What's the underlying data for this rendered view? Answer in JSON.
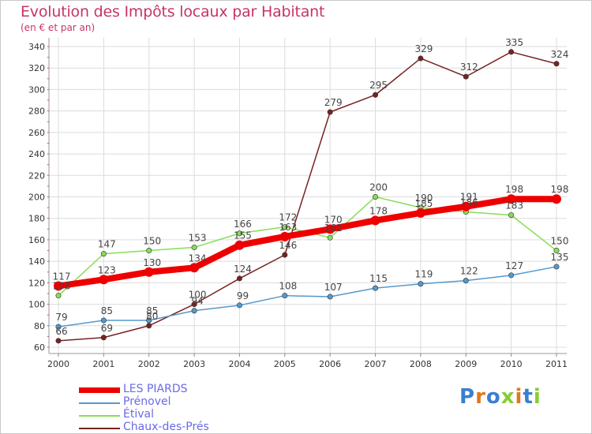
{
  "chart_data": {
    "type": "line",
    "title": "Evolution des Impôts locaux par Habitant",
    "subtitle": "(en € et par an)",
    "xlabel": "",
    "ylabel": "",
    "categories": [
      "2000",
      "2001",
      "2002",
      "2003",
      "2004",
      "2005",
      "2006",
      "2007",
      "2008",
      "2009",
      "2010",
      "2011"
    ],
    "ylim": [
      60,
      345
    ],
    "yticks": [
      60,
      80,
      100,
      120,
      140,
      160,
      180,
      200,
      220,
      240,
      260,
      280,
      300,
      320,
      340
    ],
    "grid": true,
    "legend_position": "bottom-left",
    "series": [
      {
        "name": "LES PIARDS",
        "color": "#ee0000",
        "values": [
          117,
          123,
          130,
          134,
          155,
          163,
          170,
          178,
          185,
          191,
          198,
          198
        ],
        "labels": [
          "117",
          "123",
          "130",
          "134",
          "155",
          "163",
          "170",
          "178",
          "185",
          "191",
          "198",
          "198"
        ]
      },
      {
        "name": "Prénovel",
        "color": "#5599cc",
        "values": [
          79,
          85,
          85,
          94,
          99,
          108,
          107,
          115,
          119,
          122,
          127,
          135
        ],
        "labels": [
          "79",
          "85",
          "85",
          "94",
          "99",
          "108",
          "107",
          "115",
          "119",
          "122",
          "127",
          "135"
        ]
      },
      {
        "name": "Étival",
        "color": "#88dd55",
        "values": [
          108,
          147,
          150,
          153,
          166,
          172,
          162,
          200,
          190,
          186,
          183,
          150
        ],
        "labels": [
          "108",
          "147",
          "150",
          "153",
          "166",
          "172",
          "162",
          "200",
          "190",
          "186",
          "183",
          "150"
        ]
      },
      {
        "name": "Chaux-des-Prés",
        "color": "#772222",
        "values": [
          66,
          69,
          80,
          100,
          124,
          146,
          279,
          295,
          329,
          312,
          335,
          324
        ],
        "labels": [
          "66",
          "69",
          "80",
          "100",
          "124",
          "146",
          "279",
          "295",
          "329",
          "312",
          "335",
          "324"
        ]
      }
    ]
  },
  "logo": {
    "text": "Proxiti",
    "colors": [
      "#3a7fd0",
      "#e07820",
      "#3a7fd0",
      "#88cc33",
      "#e07820",
      "#3a7fd0",
      "#88cc33"
    ]
  }
}
